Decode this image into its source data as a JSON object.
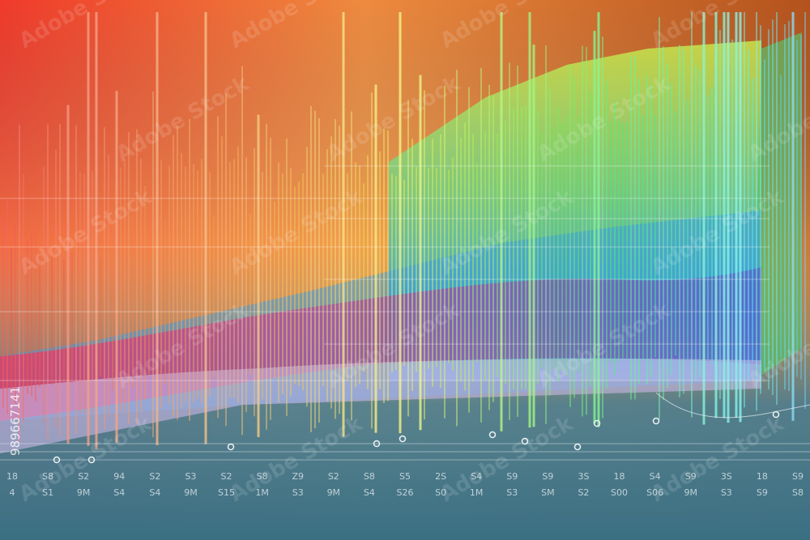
{
  "watermark": "Adobe Stock",
  "image_id": "989667141",
  "axis_labels": {
    "row1": [
      "18",
      "S8",
      "S2",
      "94",
      "S2",
      "S3",
      "S2",
      "S8",
      "Z9",
      "S2",
      "S8",
      "S5",
      "2S",
      "S4",
      "S9",
      "S9",
      "3S",
      "18",
      "S4",
      "S9",
      "3S",
      "18",
      "S9"
    ],
    "row2": [
      "4",
      "S1",
      "9M",
      "S4",
      "S4",
      "9M",
      "S15",
      "1M",
      "S3",
      "9M",
      "S4",
      "S26",
      "S0",
      "1M",
      "S3",
      "SM",
      "S2",
      "S00",
      "S06",
      "9M",
      "S3",
      "S9",
      "S8"
    ]
  }
}
